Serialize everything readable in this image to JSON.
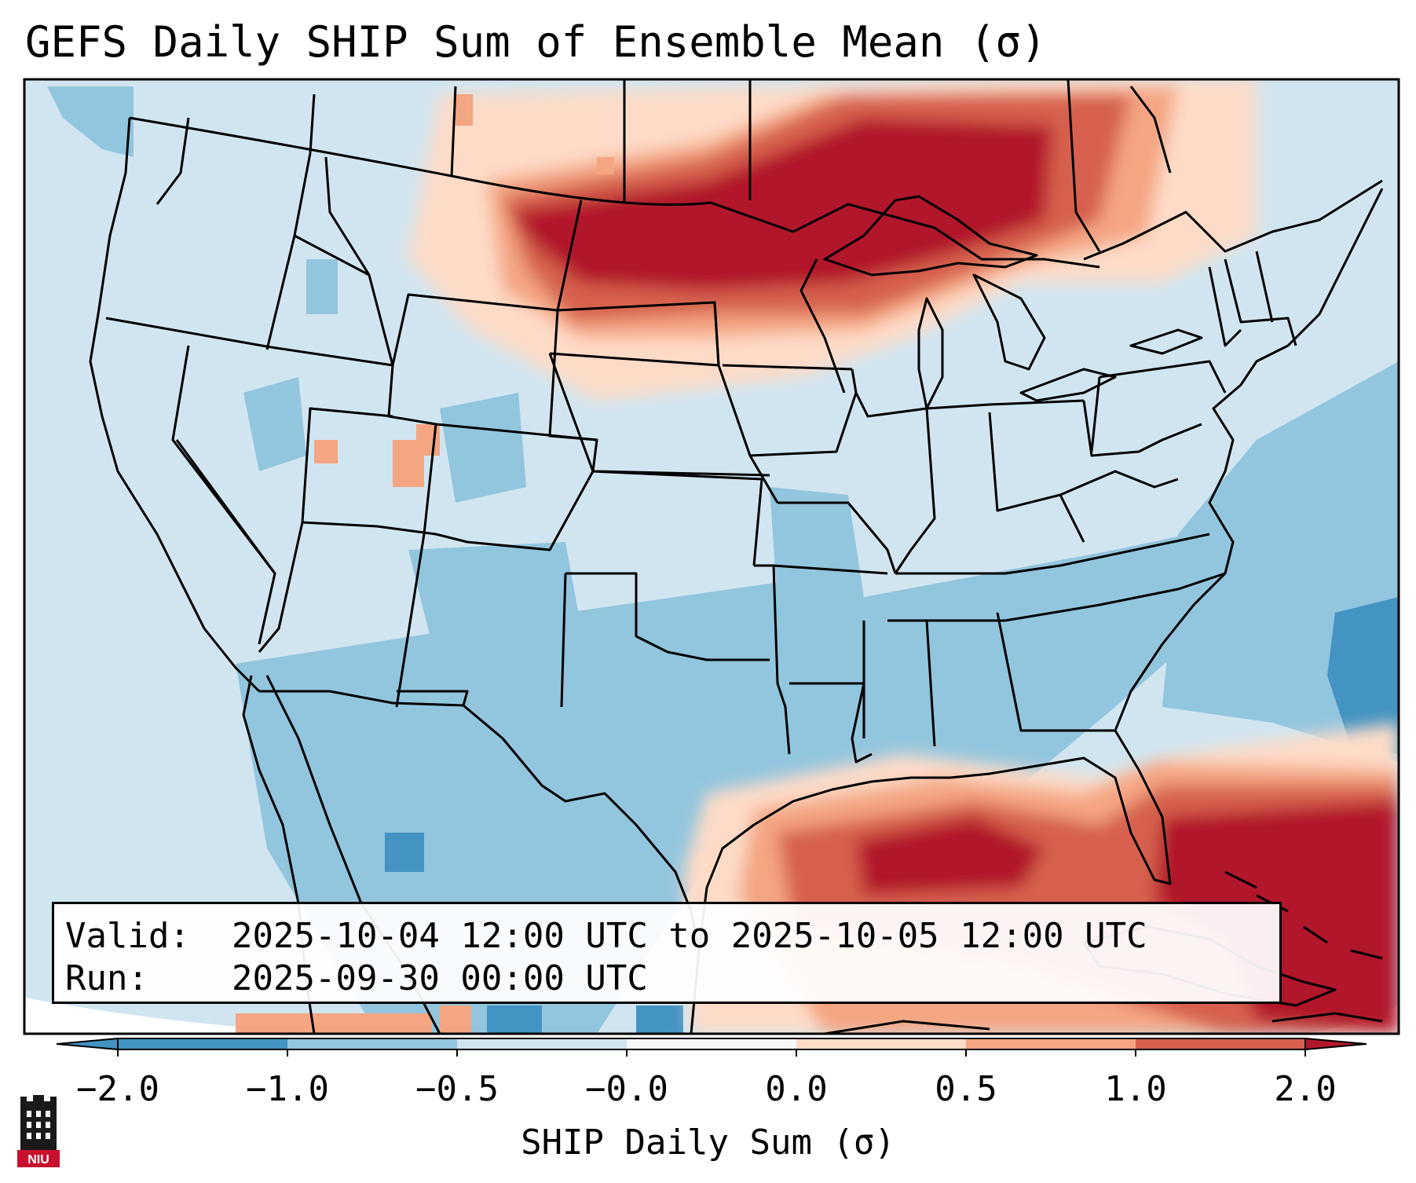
{
  "title": "GEFS Daily SHIP Sum of Ensemble Mean (σ)",
  "info": {
    "valid_label": "Valid:",
    "valid_value": "2025-10-04 12:00 UTC to 2025-10-05 12:00 UTC",
    "run_label": "Run:",
    "run_value": "2025-09-30 00:00 UTC"
  },
  "colorbar": {
    "label": "SHIP Daily Sum (σ)",
    "ticks": [
      "−2.0",
      "−1.0",
      "−0.5",
      "−0.0",
      "0.0",
      "0.5",
      "1.0",
      "2.0"
    ],
    "colors": [
      "#4393c3",
      "#92c5de",
      "#d1e5f0",
      "#f7f7f7",
      "#fddbc7",
      "#f4a582",
      "#d6604d",
      "#b2182b"
    ],
    "extend": "both"
  },
  "logo": {
    "text": "NIU",
    "color": "#c8102e"
  }
}
